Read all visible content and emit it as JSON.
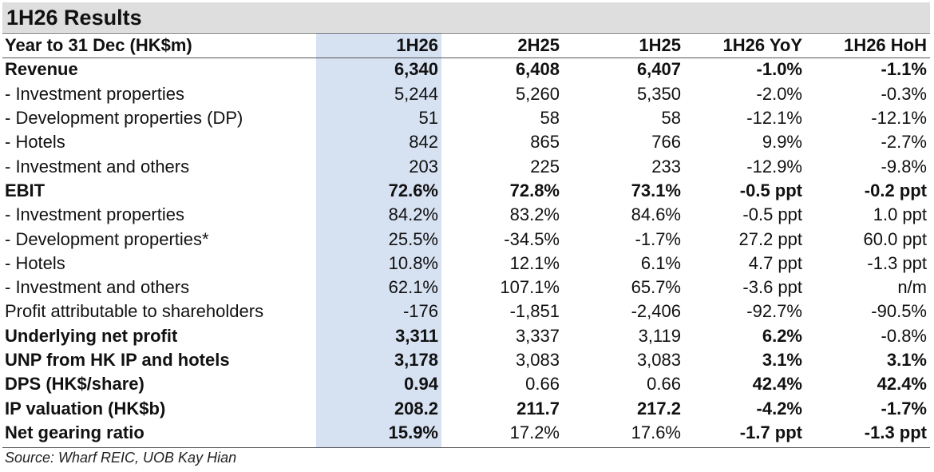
{
  "title": "1H26 Results",
  "columns": [
    "Year to 31 Dec (HK$m)",
    "1H26",
    "2H25",
    "1H25",
    "1H26 YoY",
    "1H26 HoH"
  ],
  "rows": [
    {
      "label": "Revenue",
      "values": [
        "6,340",
        "6,408",
        "6,407",
        "-1.0%",
        "-1.1%"
      ],
      "bold": [
        true,
        true,
        true,
        true,
        true,
        true
      ]
    },
    {
      "label": "- Investment properties",
      "values": [
        "5,244",
        "5,260",
        "5,350",
        "-2.0%",
        "-0.3%"
      ],
      "bold": [
        false,
        false,
        false,
        false,
        false,
        false
      ]
    },
    {
      "label": "- Development properties (DP)",
      "values": [
        "51",
        "58",
        "58",
        "-12.1%",
        "-12.1%"
      ],
      "bold": [
        false,
        false,
        false,
        false,
        false,
        false
      ]
    },
    {
      "label": "- Hotels",
      "values": [
        "842",
        "865",
        "766",
        "9.9%",
        "-2.7%"
      ],
      "bold": [
        false,
        false,
        false,
        false,
        false,
        false
      ]
    },
    {
      "label": "- Investment and others",
      "values": [
        "203",
        "225",
        "233",
        "-12.9%",
        "-9.8%"
      ],
      "bold": [
        false,
        false,
        false,
        false,
        false,
        false
      ]
    },
    {
      "label": "EBIT",
      "values": [
        "72.6%",
        "72.8%",
        "73.1%",
        "-0.5 ppt",
        "-0.2 ppt"
      ],
      "bold": [
        true,
        true,
        true,
        true,
        true,
        true
      ]
    },
    {
      "label": "- Investment properties",
      "values": [
        "84.2%",
        "83.2%",
        "84.6%",
        "-0.5 ppt",
        "1.0 ppt"
      ],
      "bold": [
        false,
        false,
        false,
        false,
        false,
        false
      ]
    },
    {
      "label": "- Development properties*",
      "values": [
        "25.5%",
        "-34.5%",
        "-1.7%",
        "27.2 ppt",
        "60.0 ppt"
      ],
      "bold": [
        false,
        false,
        false,
        false,
        false,
        false
      ]
    },
    {
      "label": "- Hotels",
      "values": [
        "10.8%",
        "12.1%",
        "6.1%",
        "4.7 ppt",
        "-1.3 ppt"
      ],
      "bold": [
        false,
        false,
        false,
        false,
        false,
        false
      ]
    },
    {
      "label": "- Investment and others",
      "values": [
        "62.1%",
        "107.1%",
        "65.7%",
        "-3.6 ppt",
        "n/m"
      ],
      "bold": [
        false,
        false,
        false,
        false,
        false,
        false
      ]
    },
    {
      "label": "Profit attributable to shareholders",
      "values": [
        "-176",
        "-1,851",
        "-2,406",
        "-92.7%",
        "-90.5%"
      ],
      "bold": [
        false,
        false,
        false,
        false,
        false,
        false
      ]
    },
    {
      "label": "Underlying net profit",
      "values": [
        "3,311",
        "3,337",
        "3,119",
        "6.2%",
        "-0.8%"
      ],
      "bold": [
        true,
        true,
        false,
        false,
        true,
        false
      ]
    },
    {
      "label": "UNP from HK IP and hotels",
      "values": [
        "3,178",
        "3,083",
        "3,083",
        "3.1%",
        "3.1%"
      ],
      "bold": [
        true,
        true,
        false,
        false,
        true,
        true
      ]
    },
    {
      "label": "DPS (HK$/share)",
      "values": [
        "0.94",
        "0.66",
        "0.66",
        "42.4%",
        "42.4%"
      ],
      "bold": [
        true,
        true,
        false,
        false,
        true,
        true
      ]
    },
    {
      "label": "IP valuation (HK$b)",
      "values": [
        "208.2",
        "211.7",
        "217.2",
        "-4.2%",
        "-1.7%"
      ],
      "bold": [
        true,
        true,
        true,
        true,
        true,
        true
      ]
    },
    {
      "label": "Net gearing ratio",
      "values": [
        "15.9%",
        "17.2%",
        "17.6%",
        "-1.7 ppt",
        "-1.3 ppt"
      ],
      "bold": [
        true,
        true,
        false,
        false,
        true,
        true
      ]
    }
  ],
  "source": "Source: Wharf REIC, UOB Kay Hian",
  "colors": {
    "title_bg": "#dedede",
    "highlight_col": "#d6e1f2",
    "rule": "#555555"
  }
}
